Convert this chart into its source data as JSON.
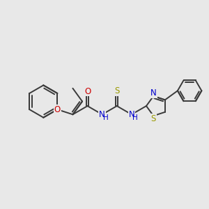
{
  "bg_color": "#e8e8e8",
  "bond_color": "#3a3a3a",
  "bond_width": 1.4,
  "font_size": 8.5,
  "figsize": [
    3.0,
    3.0
  ],
  "dpi": 100,
  "xlim": [
    0,
    10
  ],
  "ylim": [
    0,
    10
  ]
}
